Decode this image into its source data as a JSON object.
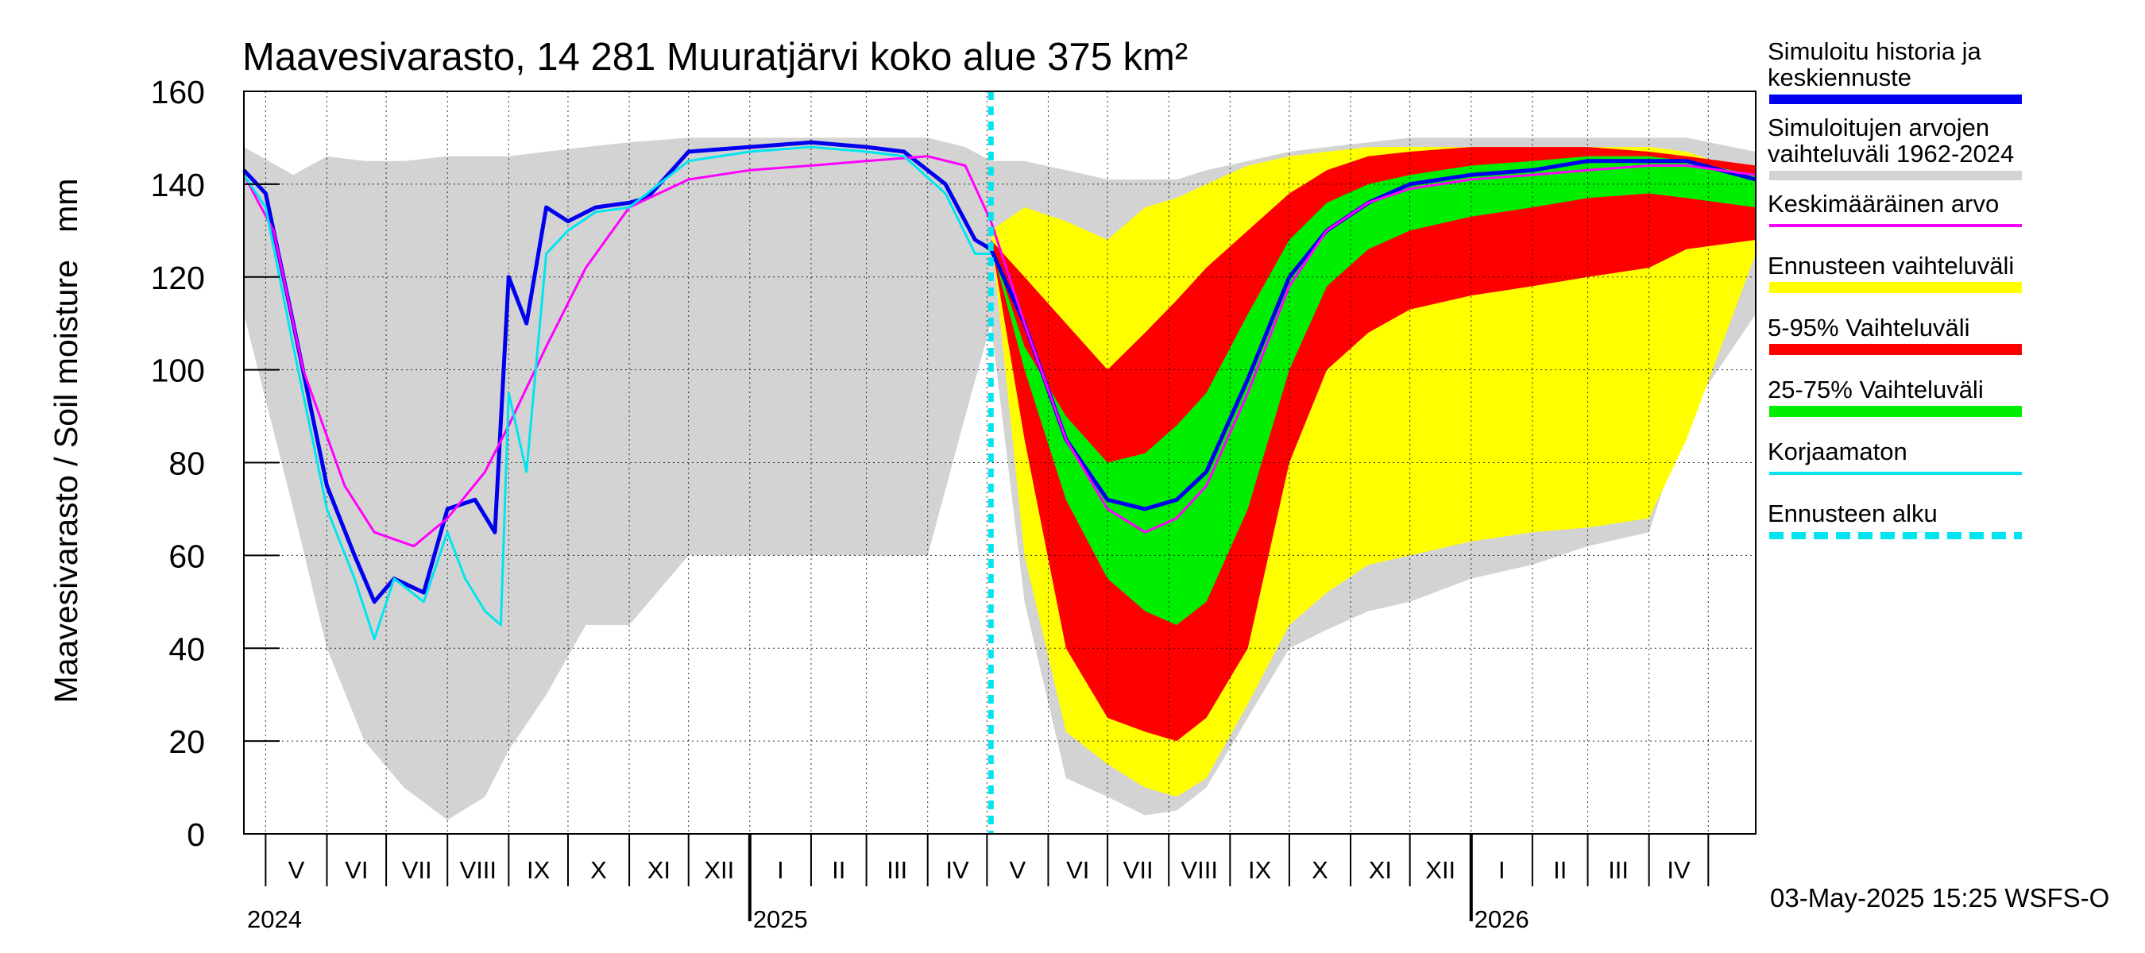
{
  "chart_data": {
    "type": "area",
    "title": "Maavesivarasto, 14 281 Muuratjärvi koko alue 375 km²",
    "ylabel": "Maavesivarasto / Soil moisture   mm",
    "ylim": [
      0,
      160
    ],
    "yticks": [
      "0",
      "20",
      "40",
      "60",
      "80",
      "100",
      "120",
      "140",
      "160"
    ],
    "xlim": [
      "2024-04-20",
      "2026-05-25"
    ],
    "months": [
      {
        "label": "V",
        "start": "2024-05-01"
      },
      {
        "label": "VI",
        "start": "2024-06-01"
      },
      {
        "label": "VII",
        "start": "2024-07-01"
      },
      {
        "label": "VIII",
        "start": "2024-08-01"
      },
      {
        "label": "IX",
        "start": "2024-09-01"
      },
      {
        "label": "X",
        "start": "2024-10-01"
      },
      {
        "label": "XI",
        "start": "2024-11-01"
      },
      {
        "label": "XII",
        "start": "2024-12-01"
      },
      {
        "label": "I",
        "start": "2025-01-01"
      },
      {
        "label": "II",
        "start": "2025-02-01"
      },
      {
        "label": "III",
        "start": "2025-03-01"
      },
      {
        "label": "IV",
        "start": "2025-04-01"
      },
      {
        "label": "V",
        "start": "2025-05-01"
      },
      {
        "label": "VI",
        "start": "2025-06-01"
      },
      {
        "label": "VII",
        "start": "2025-07-01"
      },
      {
        "label": "VIII",
        "start": "2025-08-01"
      },
      {
        "label": "IX",
        "start": "2025-09-01"
      },
      {
        "label": "X",
        "start": "2025-10-01"
      },
      {
        "label": "XI",
        "start": "2025-11-01"
      },
      {
        "label": "XII",
        "start": "2025-12-01"
      },
      {
        "label": "I",
        "start": "2026-01-01"
      },
      {
        "label": "II",
        "start": "2026-02-01"
      },
      {
        "label": "III",
        "start": "2026-03-01"
      },
      {
        "label": "IV",
        "start": "2026-04-01"
      },
      {
        "label": "",
        "start": "2026-05-01"
      }
    ],
    "years": [
      {
        "label": "2024",
        "at": "2024-04-20"
      },
      {
        "label": "2025",
        "at": "2025-01-01"
      },
      {
        "label": "2026",
        "at": "2026-01-01"
      }
    ],
    "forecast_start": "2025-05-03",
    "grid": true,
    "legend_position": "right",
    "series": [
      {
        "name": "Simuloitujen arvojen vaihteluväli 1962-2024",
        "kind": "band",
        "color": "#d3d3d3",
        "x": [
          "2024-04-20",
          "2024-05-15",
          "2024-06-01",
          "2024-06-20",
          "2024-07-10",
          "2024-08-01",
          "2024-08-20",
          "2024-09-01",
          "2024-09-20",
          "2024-10-10",
          "2024-11-01",
          "2024-12-01",
          "2025-01-01",
          "2025-02-01",
          "2025-03-01",
          "2025-04-01",
          "2025-04-20",
          "2025-05-03",
          "2025-05-20",
          "2025-06-10",
          "2025-07-01",
          "2025-07-20",
          "2025-08-05",
          "2025-08-20",
          "2025-09-10",
          "2025-10-01",
          "2025-10-20",
          "2025-11-10",
          "2025-12-01",
          "2026-01-01",
          "2026-02-01",
          "2026-03-01",
          "2026-04-01",
          "2026-04-20",
          "2026-05-25"
        ],
        "high": [
          148,
          142,
          146,
          145,
          145,
          146,
          146,
          146,
          147,
          148,
          149,
          150,
          150,
          150,
          150,
          150,
          148,
          145,
          145,
          143,
          141,
          141,
          141,
          143,
          145,
          147,
          148,
          149,
          150,
          150,
          150,
          150,
          150,
          150,
          147
        ],
        "low": [
          112,
          70,
          40,
          20,
          10,
          3,
          8,
          18,
          30,
          45,
          45,
          60,
          60,
          60,
          60,
          60,
          90,
          110,
          50,
          12,
          8,
          4,
          5,
          10,
          25,
          40,
          44,
          48,
          50,
          55,
          58,
          62,
          65,
          90,
          112
        ]
      },
      {
        "name": "Ennusteen vaihteluväli",
        "kind": "band",
        "color": "#ffff00",
        "x": [
          "2025-05-03",
          "2025-05-20",
          "2025-06-10",
          "2025-07-01",
          "2025-07-20",
          "2025-08-05",
          "2025-08-20",
          "2025-09-10",
          "2025-10-01",
          "2025-10-20",
          "2025-11-10",
          "2025-12-01",
          "2026-01-01",
          "2026-02-01",
          "2026-03-01",
          "2026-04-01",
          "2026-04-20",
          "2026-05-25"
        ],
        "high": [
          130,
          135,
          132,
          128,
          135,
          137,
          140,
          144,
          146,
          147,
          148,
          148,
          148,
          148,
          148,
          148,
          147,
          142
        ],
        "low": [
          130,
          60,
          22,
          15,
          10,
          8,
          12,
          28,
          45,
          52,
          58,
          60,
          63,
          65,
          66,
          68,
          85,
          125
        ]
      },
      {
        "name": "5-95% Vaihteluväli",
        "kind": "band",
        "color": "#ff0000",
        "x": [
          "2025-05-03",
          "2025-05-20",
          "2025-06-10",
          "2025-07-01",
          "2025-07-20",
          "2025-08-05",
          "2025-08-20",
          "2025-09-10",
          "2025-10-01",
          "2025-10-20",
          "2025-11-10",
          "2025-12-01",
          "2026-01-01",
          "2026-02-01",
          "2026-03-01",
          "2026-04-01",
          "2026-04-20",
          "2026-05-25"
        ],
        "high": [
          128,
          120,
          110,
          100,
          108,
          115,
          122,
          130,
          138,
          143,
          146,
          147,
          148,
          148,
          148,
          147,
          146,
          144
        ],
        "low": [
          128,
          85,
          40,
          25,
          22,
          20,
          25,
          40,
          80,
          100,
          108,
          113,
          116,
          118,
          120,
          122,
          126,
          128
        ]
      },
      {
        "name": "25-75% Vaihteluväli",
        "kind": "band",
        "color": "#00ee00",
        "x": [
          "2025-05-03",
          "2025-05-20",
          "2025-06-10",
          "2025-07-01",
          "2025-07-20",
          "2025-08-05",
          "2025-08-20",
          "2025-09-10",
          "2025-10-01",
          "2025-10-20",
          "2025-11-10",
          "2025-12-01",
          "2026-01-01",
          "2026-02-01",
          "2026-03-01",
          "2026-04-01",
          "2026-04-20",
          "2026-05-25"
        ],
        "high": [
          127,
          105,
          90,
          80,
          82,
          88,
          95,
          112,
          128,
          136,
          140,
          142,
          144,
          145,
          146,
          146,
          145,
          142
        ],
        "low": [
          127,
          100,
          72,
          55,
          48,
          45,
          50,
          70,
          100,
          118,
          126,
          130,
          133,
          135,
          137,
          138,
          137,
          135
        ]
      },
      {
        "name": "Simuloitu historia ja keskiennuste",
        "kind": "line",
        "color": "#0000ee",
        "width": 5,
        "x": [
          "2024-04-20",
          "2024-05-01",
          "2024-05-15",
          "2024-06-01",
          "2024-06-15",
          "2024-06-25",
          "2024-07-05",
          "2024-07-20",
          "2024-08-01",
          "2024-08-15",
          "2024-08-25",
          "2024-09-01",
          "2024-09-10",
          "2024-09-20",
          "2024-10-01",
          "2024-10-15",
          "2024-11-01",
          "2024-11-10",
          "2024-12-01",
          "2025-01-01",
          "2025-02-01",
          "2025-03-01",
          "2025-03-20",
          "2025-04-10",
          "2025-04-25",
          "2025-05-03",
          "2025-05-20",
          "2025-06-10",
          "2025-07-01",
          "2025-07-20",
          "2025-08-05",
          "2025-08-20",
          "2025-09-10",
          "2025-10-01",
          "2025-10-20",
          "2025-11-10",
          "2025-12-01",
          "2026-01-01",
          "2026-02-01",
          "2026-03-01",
          "2026-04-01",
          "2026-04-20",
          "2026-05-25"
        ],
        "y": [
          143,
          138,
          110,
          75,
          60,
          50,
          55,
          52,
          70,
          72,
          65,
          120,
          110,
          135,
          132,
          135,
          136,
          137,
          147,
          148,
          149,
          148,
          147,
          140,
          128,
          126,
          110,
          85,
          72,
          70,
          72,
          78,
          98,
          120,
          130,
          136,
          140,
          142,
          143,
          145,
          145,
          145,
          141
        ]
      },
      {
        "name": "Keskimääräinen arvo",
        "kind": "line",
        "color": "#ff00ff",
        "width": 3,
        "x": [
          "2024-04-20",
          "2024-05-05",
          "2024-05-20",
          "2024-06-10",
          "2024-06-25",
          "2024-07-15",
          "2024-08-01",
          "2024-08-20",
          "2024-09-01",
          "2024-09-20",
          "2024-10-10",
          "2024-11-01",
          "2024-12-01",
          "2025-01-01",
          "2025-02-01",
          "2025-03-01",
          "2025-04-01",
          "2025-04-20",
          "2025-05-03",
          "2025-05-20",
          "2025-06-10",
          "2025-07-01",
          "2025-07-20",
          "2025-08-05",
          "2025-08-20",
          "2025-09-10",
          "2025-10-01",
          "2025-10-20",
          "2025-11-10",
          "2025-12-01",
          "2026-01-01",
          "2026-02-01",
          "2026-03-01",
          "2026-04-01",
          "2026-04-20",
          "2026-05-25"
        ],
        "y": [
          142,
          130,
          100,
          75,
          65,
          62,
          68,
          78,
          88,
          105,
          122,
          135,
          141,
          143,
          144,
          145,
          146,
          144,
          132,
          110,
          85,
          70,
          65,
          68,
          75,
          95,
          118,
          130,
          136,
          139,
          141,
          142,
          143,
          144,
          144,
          142
        ]
      },
      {
        "name": "Korjaamaton",
        "kind": "line",
        "color": "#00e5ee",
        "width": 3,
        "x": [
          "2024-04-20",
          "2024-05-01",
          "2024-05-15",
          "2024-06-01",
          "2024-06-15",
          "2024-06-25",
          "2024-07-05",
          "2024-07-20",
          "2024-08-01",
          "2024-08-10",
          "2024-08-20",
          "2024-08-28",
          "2024-09-01",
          "2024-09-10",
          "2024-09-20",
          "2024-10-01",
          "2024-10-15",
          "2024-11-01",
          "2024-12-01",
          "2025-01-01",
          "2025-02-01",
          "2025-03-01",
          "2025-03-20",
          "2025-04-10",
          "2025-04-25",
          "2025-05-03"
        ],
        "y": [
          142,
          135,
          105,
          70,
          55,
          42,
          55,
          50,
          65,
          55,
          48,
          45,
          95,
          78,
          125,
          130,
          134,
          135,
          145,
          147,
          148,
          147,
          146,
          138,
          125,
          125
        ]
      },
      {
        "name": "Ennusteen alku",
        "kind": "vline",
        "color": "#00e5ee",
        "x": "2025-05-03"
      }
    ]
  },
  "legend": [
    {
      "label": "Simuloitu historia ja\nkeskiennuste",
      "color": "#0000ee",
      "style": "solid",
      "thick": 12
    },
    {
      "label": "Simuloitujen arvojen\nvaihteluväli 1962-2024",
      "color": "#d3d3d3",
      "style": "solid",
      "thick": 12
    },
    {
      "label": "Keskimääräinen arvo",
      "color": "#ff00ff",
      "style": "solid",
      "thick": 4
    },
    {
      "label": "Ennusteen vaihteluväli",
      "color": "#ffff00",
      "style": "solid",
      "thick": 14
    },
    {
      "label": "5-95% Vaihteluväli",
      "color": "#ff0000",
      "style": "solid",
      "thick": 14
    },
    {
      "label": "25-75% Vaihteluväli",
      "color": "#00ee00",
      "style": "solid",
      "thick": 14
    },
    {
      "label": "Korjaamaton",
      "color": "#00e5ee",
      "style": "solid",
      "thick": 4
    },
    {
      "label": "Ennusteen alku",
      "color": "#00e5ee",
      "style": "dashed",
      "thick": 9
    }
  ],
  "footer": "03-May-2025 15:25 WSFS-O"
}
